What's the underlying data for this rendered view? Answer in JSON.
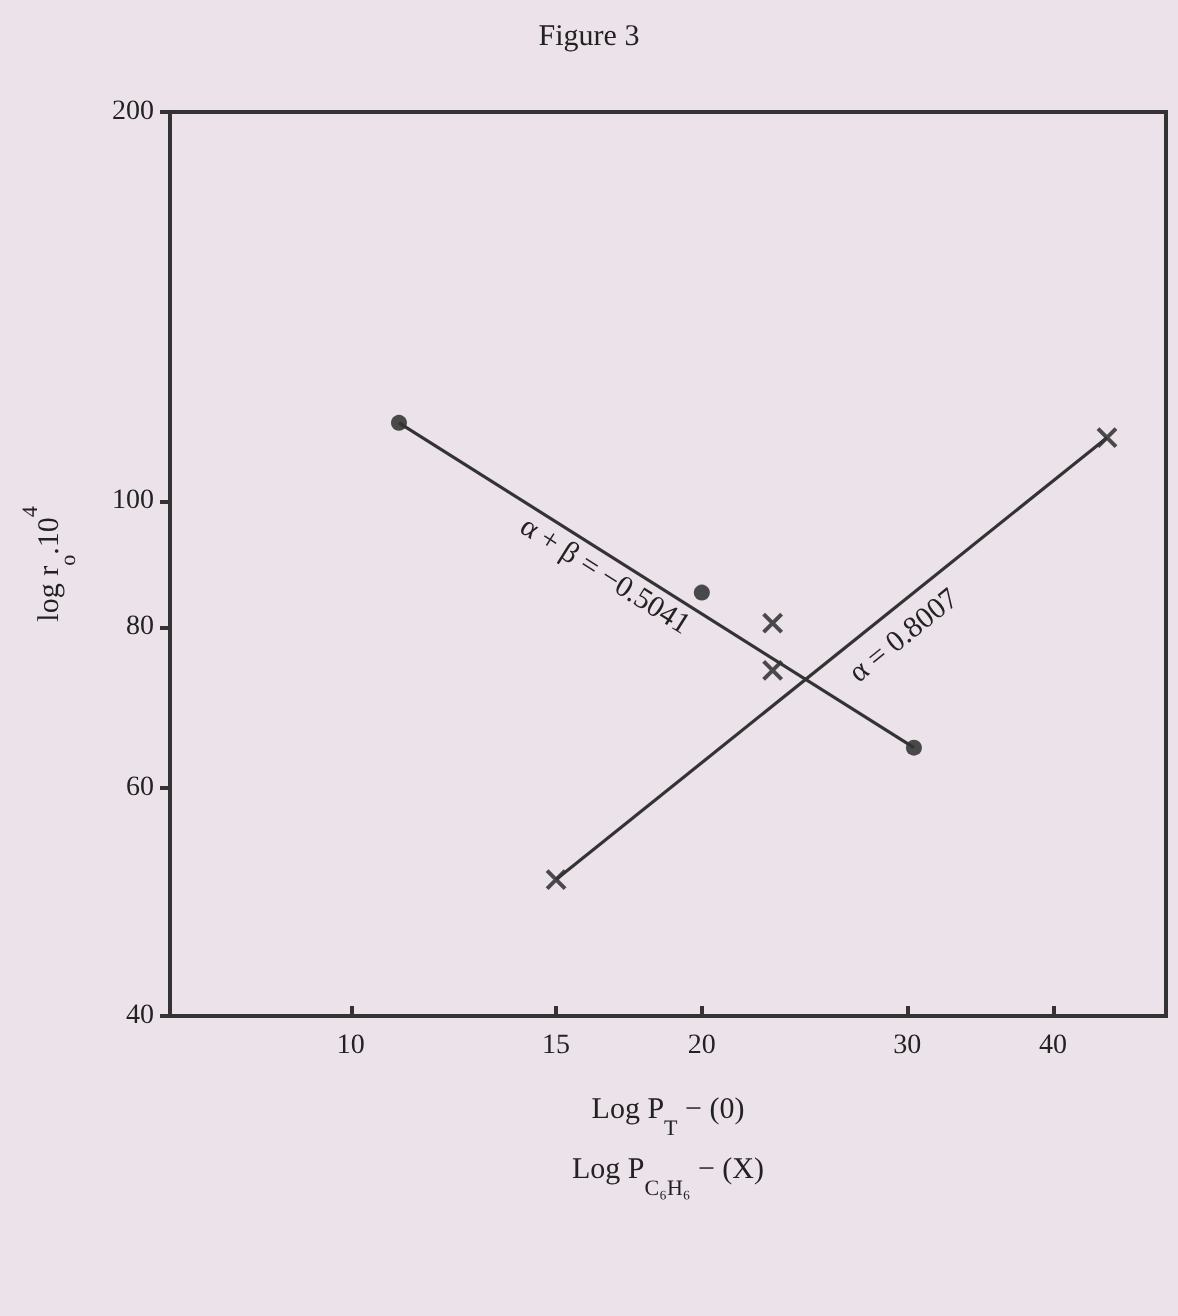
{
  "chart_data": {
    "type": "scatter",
    "title": "Figure 3",
    "xlabel": "Log P$_{T}$ − (0)\nLog P$_{C₆H₆}$ − (X)",
    "ylabel": "log r$_{o}$.10$^{4}$",
    "log": "xy",
    "xlim": [
      7,
      50
    ],
    "xticks": [
      10,
      15,
      20,
      30,
      40
    ],
    "ylim": [
      40,
      200
    ],
    "yticks": [
      40,
      60,
      80,
      100,
      200
    ],
    "grid": false,
    "series": [
      {
        "marker": "circle",
        "color": "#222222",
        "x": [
          11,
          20,
          30.4
        ],
        "values": [
          115,
          85,
          64.5
        ]
      },
      {
        "type": "line",
        "marker": "none",
        "color": "#333333",
        "x": [
          11,
          30.4
        ],
        "values": [
          115,
          64.5
        ]
      },
      {
        "marker": "cross",
        "color": "#222222",
        "x": [
          15,
          23,
          23,
          44.5
        ],
        "values": [
          51,
          80.5,
          74,
          112
        ]
      },
      {
        "type": "line",
        "marker": "none",
        "color": "#333333",
        "x": [
          15,
          44.5
        ],
        "values": [
          51,
          112
        ]
      }
    ],
    "annotations": [
      "α + β = −0.5041",
      "α = 0.8007"
    ]
  }
}
